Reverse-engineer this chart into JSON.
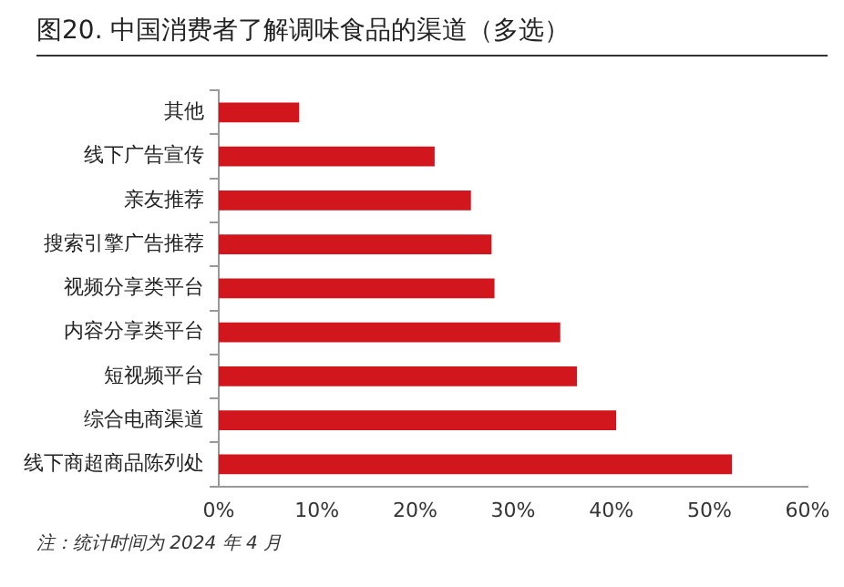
{
  "chart_data": {
    "type": "bar",
    "orientation": "horizontal",
    "title": "图20. 中国消费者了解调味食品的渠道（多选）",
    "categories": [
      "其他",
      "线下广告宣传",
      "亲友推荐",
      "搜索引擎广告推荐",
      "视频分享类平台",
      "内容分享类平台",
      "短视频平台",
      "综合电商渠道",
      "线下商超商品陈列处"
    ],
    "values": [
      8.2,
      22.0,
      25.7,
      27.8,
      28.1,
      34.8,
      36.5,
      40.5,
      52.3
    ],
    "color": "#d2161e",
    "xlim": [
      0,
      60
    ],
    "xticks": [
      {
        "value": 0,
        "label": "0%"
      },
      {
        "value": 10,
        "label": "10%"
      },
      {
        "value": 20,
        "label": "20%"
      },
      {
        "value": 30,
        "label": "30%"
      },
      {
        "value": 40,
        "label": "40%"
      },
      {
        "value": 50,
        "label": "50%"
      },
      {
        "value": 60,
        "label": "60%"
      }
    ],
    "grid": false,
    "legend": false,
    "annotations": [
      "注：统计时间为 2024 年 4 月"
    ]
  }
}
